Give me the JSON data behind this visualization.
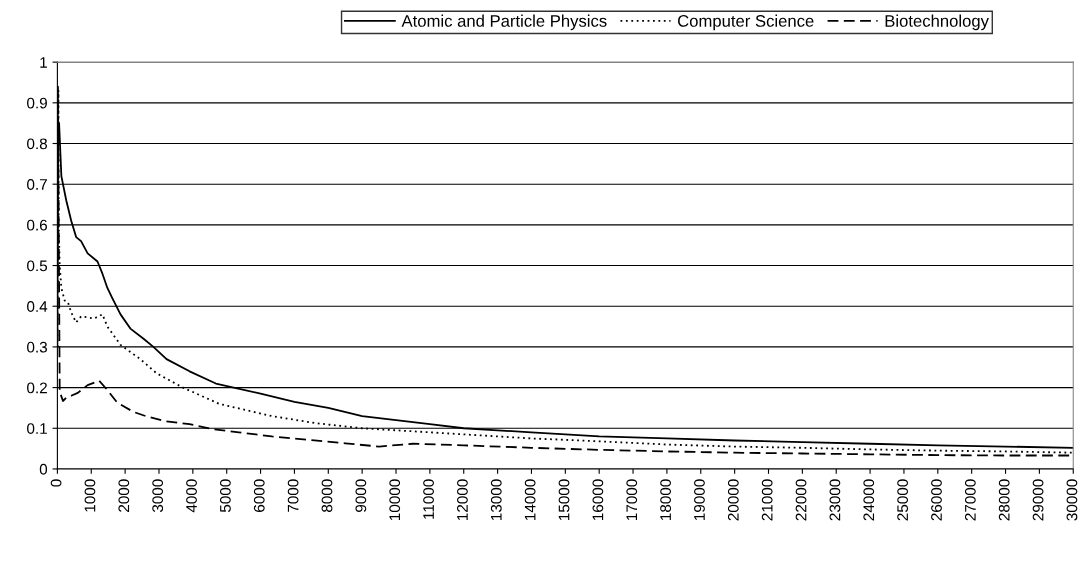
{
  "chart_data": {
    "type": "line",
    "legend": "top",
    "grid": "y",
    "xlim": [
      0,
      30000
    ],
    "ylim": [
      0,
      1
    ],
    "xticks": [
      0,
      1000,
      2000,
      3000,
      4000,
      5000,
      6000,
      7000,
      8000,
      9000,
      10000,
      11000,
      12000,
      13000,
      14000,
      15000,
      16000,
      17000,
      18000,
      19000,
      20000,
      21000,
      22000,
      23000,
      24000,
      25000,
      26000,
      27000,
      28000,
      29000,
      30000
    ],
    "yticks": [
      0,
      0.1,
      0.2,
      0.3,
      0.4,
      0.5,
      0.6,
      0.7,
      0.8,
      0.9,
      1
    ],
    "series": [
      {
        "name": "Atomic and Particle Physics",
        "color": "#000000",
        "line_style": "solid",
        "x": [
          0,
          20,
          50,
          117,
          262,
          408,
          553,
          699,
          893,
          1184,
          1330,
          1476,
          1621,
          1864,
          2155,
          2544,
          2835,
          3223,
          3903,
          4680,
          6000,
          7000,
          8000,
          9000,
          10000,
          11000,
          12000,
          13000,
          14000,
          15000,
          16000,
          18000,
          20000,
          22000,
          24000,
          26000,
          28000,
          30000
        ],
        "values": [
          0.3,
          0.81,
          0.85,
          0.72,
          0.66,
          0.61,
          0.57,
          0.56,
          0.53,
          0.51,
          0.48,
          0.445,
          0.42,
          0.38,
          0.345,
          0.32,
          0.3,
          0.27,
          0.24,
          0.21,
          0.185,
          0.165,
          0.15,
          0.13,
          0.12,
          0.11,
          0.1,
          0.095,
          0.09,
          0.085,
          0.08,
          0.075,
          0.07,
          0.066,
          0.062,
          0.058,
          0.055,
          0.052
        ]
      },
      {
        "name": "Computer Science",
        "color": "#000000",
        "line_style": "dotted",
        "x": [
          0,
          30,
          39,
          68,
          117,
          214,
          311,
          408,
          553,
          699,
          1087,
          1330,
          1476,
          1864,
          2447,
          2932,
          3709,
          4777,
          6330,
          7592,
          9000,
          10000,
          12000,
          14000,
          16000,
          18000,
          20000,
          22000,
          24000,
          26000,
          28000,
          30000
        ],
        "values": [
          0.3,
          0.93,
          0.6,
          0.5,
          0.445,
          0.414,
          0.41,
          0.385,
          0.36,
          0.375,
          0.37,
          0.38,
          0.35,
          0.305,
          0.27,
          0.235,
          0.2,
          0.16,
          0.13,
          0.113,
          0.1,
          0.095,
          0.085,
          0.075,
          0.068,
          0.06,
          0.055,
          0.052,
          0.048,
          0.045,
          0.043,
          0.04
        ]
      },
      {
        "name": "Biotechnology",
        "color": "#000000",
        "line_style": "dashed",
        "x": [
          0,
          15,
          68,
          165,
          262,
          408,
          602,
          893,
          1233,
          1476,
          1767,
          2252,
          2641,
          3223,
          3903,
          4583,
          5359,
          6330,
          7592,
          8500,
          9500,
          10200,
          10500,
          12000,
          14000,
          16000,
          18000,
          20000,
          22000,
          24000,
          26000,
          28000,
          30000
        ],
        "values": [
          0.5,
          0.94,
          0.19,
          0.167,
          0.175,
          0.18,
          0.187,
          0.206,
          0.217,
          0.194,
          0.163,
          0.14,
          0.129,
          0.117,
          0.11,
          0.098,
          0.09,
          0.08,
          0.07,
          0.063,
          0.055,
          0.06,
          0.062,
          0.058,
          0.052,
          0.047,
          0.043,
          0.04,
          0.038,
          0.036,
          0.034,
          0.033,
          0.033
        ]
      }
    ]
  }
}
